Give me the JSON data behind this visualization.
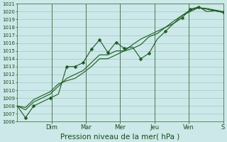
{
  "background_color": "#cce8e8",
  "grid_color": "#99cccc",
  "line_color": "#1a5c1a",
  "text_color": "#1a4a1a",
  "xlabel": "Pression niveau de la mer( hPa )",
  "ylim": [
    1006,
    1021
  ],
  "xlim": [
    0,
    12.5
  ],
  "day_labels": [
    "Dim",
    "Mar",
    "Mer",
    "Jeu",
    "Ven",
    "S"
  ],
  "day_positions": [
    2.08,
    4.17,
    6.25,
    8.33,
    10.42,
    12.5
  ],
  "series1_x": [
    0.0,
    0.5,
    1.0,
    2.0,
    2.5,
    3.0,
    3.5,
    4.0,
    4.5,
    5.0,
    5.5,
    6.0,
    6.5,
    7.0,
    7.5,
    8.0,
    8.5,
    9.0,
    9.5,
    10.0,
    10.5,
    11.0,
    11.5,
    12.0,
    12.5
  ],
  "series1_y": [
    1008,
    1006.5,
    1008,
    1009,
    1009.5,
    1013,
    1013,
    1013.5,
    1015.2,
    1016.4,
    1014.8,
    1016.1,
    1015.3,
    1015.5,
    1014,
    1014.7,
    1016.5,
    1017.5,
    1018.5,
    1019.2,
    1020.3,
    1020.6,
    1020,
    1020.1,
    1019.9
  ],
  "series2_x": [
    0.0,
    0.5,
    1.0,
    2.0,
    2.5,
    3.0,
    3.5,
    4.0,
    4.5,
    5.0,
    5.5,
    6.0,
    6.5,
    7.0,
    7.5,
    8.0,
    8.5,
    9.0,
    9.5,
    10.0,
    10.5,
    11.0,
    11.5,
    12.0,
    12.5
  ],
  "series2_y": [
    1008,
    1007.5,
    1008.5,
    1009.5,
    1010.5,
    1011.5,
    1012,
    1012.5,
    1013.5,
    1014.5,
    1014.5,
    1015.0,
    1015.0,
    1015.3,
    1015.8,
    1016.8,
    1017.2,
    1018.0,
    1018.5,
    1019.5,
    1020.0,
    1020.5,
    1020.3,
    1020.1,
    1019.9
  ],
  "series3_x": [
    0.0,
    0.5,
    1.0,
    2.0,
    2.5,
    3.0,
    3.5,
    4.0,
    4.5,
    5.0,
    5.5,
    6.0,
    6.5,
    7.0,
    7.5,
    8.0,
    8.5,
    9.0,
    9.5,
    10.0,
    10.5,
    11.0,
    11.5,
    12.0,
    12.5
  ],
  "series3_y": [
    1008,
    1007.8,
    1008.8,
    1009.8,
    1010.8,
    1011.2,
    1011.5,
    1012.2,
    1013.0,
    1014.0,
    1014.0,
    1014.5,
    1015.0,
    1015.8,
    1016.5,
    1017.0,
    1017.5,
    1018.0,
    1018.8,
    1019.5,
    1020.2,
    1020.5,
    1020.4,
    1020.2,
    1020.0
  ],
  "marker1_x": [
    0.5,
    1.0,
    2.0,
    3.0,
    3.5,
    4.0,
    4.5,
    5.0,
    5.5,
    6.0,
    6.5,
    7.5,
    8.0,
    9.0,
    10.0,
    10.5,
    11.0,
    12.5
  ],
  "marker1_y": [
    1006.5,
    1008,
    1009,
    1013,
    1013,
    1013.5,
    1015.2,
    1016.4,
    1014.8,
    1016.1,
    1015.3,
    1014,
    1014.7,
    1017.5,
    1019.2,
    1020.3,
    1020.6,
    1019.9
  ],
  "ytick_fontsize": 5.0,
  "xtick_fontsize": 6.0,
  "xlabel_fontsize": 7.5
}
